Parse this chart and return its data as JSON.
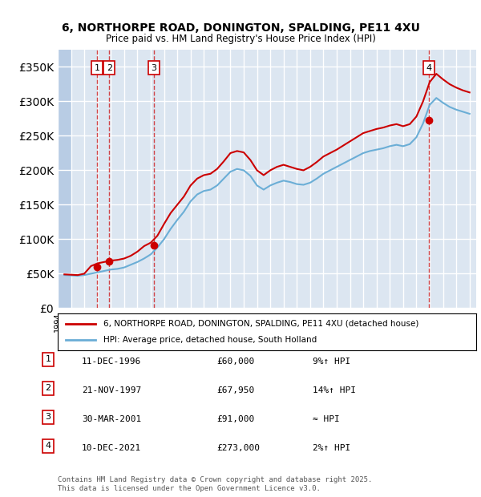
{
  "title_line1": "6, NORTHORPE ROAD, DONINGTON, SPALDING, PE11 4XU",
  "title_line2": "Price paid vs. HM Land Registry's House Price Index (HPI)",
  "ylabel": "",
  "background_color": "#dce6f1",
  "plot_bg_color": "#dce6f1",
  "hatch_color": "#b8cce4",
  "grid_color": "#ffffff",
  "ylim": [
    0,
    375000
  ],
  "yticks": [
    0,
    50000,
    100000,
    150000,
    200000,
    250000,
    300000,
    350000
  ],
  "xlim_start": 1994.0,
  "xlim_end": 2025.5,
  "legend_line1": "6, NORTHORPE ROAD, DONINGTON, SPALDING, PE11 4XU (detached house)",
  "legend_line2": "HPI: Average price, detached house, South Holland",
  "transactions": [
    {
      "num": 1,
      "date": "11-DEC-1996",
      "price": 60000,
      "pct": "9%↑ HPI",
      "year": 1996.95
    },
    {
      "num": 2,
      "date": "21-NOV-1997",
      "price": 67950,
      "pct": "14%↑ HPI",
      "year": 1997.88
    },
    {
      "num": 3,
      "date": "30-MAR-2001",
      "price": 91000,
      "pct": "≈ HPI",
      "year": 2001.24
    },
    {
      "num": 4,
      "date": "10-DEC-2021",
      "price": 273000,
      "pct": "2%↑ HPI",
      "year": 2021.94
    }
  ],
  "footer": "Contains HM Land Registry data © Crown copyright and database right 2025.\nThis data is licensed under the Open Government Licence v3.0.",
  "hpi_color": "#6baed6",
  "price_color": "#cc0000",
  "hpi_data": {
    "years": [
      1994.5,
      1995.0,
      1995.5,
      1996.0,
      1996.5,
      1997.0,
      1997.5,
      1998.0,
      1998.5,
      1999.0,
      1999.5,
      2000.0,
      2000.5,
      2001.0,
      2001.5,
      2002.0,
      2002.5,
      2003.0,
      2003.5,
      2004.0,
      2004.5,
      2005.0,
      2005.5,
      2006.0,
      2006.5,
      2007.0,
      2007.5,
      2008.0,
      2008.5,
      2009.0,
      2009.5,
      2010.0,
      2010.5,
      2011.0,
      2011.5,
      2012.0,
      2012.5,
      2013.0,
      2013.5,
      2014.0,
      2014.5,
      2015.0,
      2015.5,
      2016.0,
      2016.5,
      2017.0,
      2017.5,
      2018.0,
      2018.5,
      2019.0,
      2019.5,
      2020.0,
      2020.5,
      2021.0,
      2021.5,
      2022.0,
      2022.5,
      2023.0,
      2023.5,
      2024.0,
      2024.5,
      2025.0
    ],
    "values": [
      48000,
      47500,
      47000,
      48000,
      50000,
      52000,
      54000,
      56000,
      57000,
      59000,
      63000,
      67000,
      72000,
      78000,
      88000,
      100000,
      115000,
      128000,
      140000,
      155000,
      165000,
      170000,
      172000,
      178000,
      188000,
      198000,
      202000,
      200000,
      192000,
      178000,
      172000,
      178000,
      182000,
      185000,
      183000,
      180000,
      179000,
      182000,
      188000,
      195000,
      200000,
      205000,
      210000,
      215000,
      220000,
      225000,
      228000,
      230000,
      232000,
      235000,
      237000,
      235000,
      238000,
      248000,
      268000,
      295000,
      305000,
      298000,
      292000,
      288000,
      285000,
      282000
    ]
  },
  "price_data": {
    "years": [
      1994.5,
      1995.0,
      1995.5,
      1996.0,
      1996.5,
      1997.0,
      1997.5,
      1998.0,
      1998.5,
      1999.0,
      1999.5,
      2000.0,
      2000.5,
      2001.0,
      2001.5,
      2002.0,
      2002.5,
      2003.0,
      2003.5,
      2004.0,
      2004.5,
      2005.0,
      2005.5,
      2006.0,
      2006.5,
      2007.0,
      2007.5,
      2008.0,
      2008.5,
      2009.0,
      2009.5,
      2010.0,
      2010.5,
      2011.0,
      2011.5,
      2012.0,
      2012.5,
      2013.0,
      2013.5,
      2014.0,
      2014.5,
      2015.0,
      2015.5,
      2016.0,
      2016.5,
      2017.0,
      2017.5,
      2018.0,
      2018.5,
      2019.0,
      2019.5,
      2020.0,
      2020.5,
      2021.0,
      2021.5,
      2022.0,
      2022.5,
      2023.0,
      2023.5,
      2024.0,
      2024.5,
      2025.0
    ],
    "values": [
      49000,
      48500,
      48000,
      50000,
      61000,
      65000,
      67000,
      68950,
      70000,
      72000,
      76000,
      82000,
      90000,
      95000,
      105000,
      122000,
      138000,
      150000,
      162000,
      178000,
      188000,
      193000,
      195000,
      202000,
      213000,
      225000,
      228000,
      226000,
      215000,
      200000,
      193000,
      200000,
      205000,
      208000,
      205000,
      202000,
      200000,
      205000,
      212000,
      220000,
      225000,
      230000,
      236000,
      242000,
      248000,
      254000,
      257000,
      260000,
      262000,
      265000,
      267000,
      264000,
      267000,
      278000,
      300000,
      328000,
      340000,
      332000,
      325000,
      320000,
      316000,
      313000
    ]
  }
}
